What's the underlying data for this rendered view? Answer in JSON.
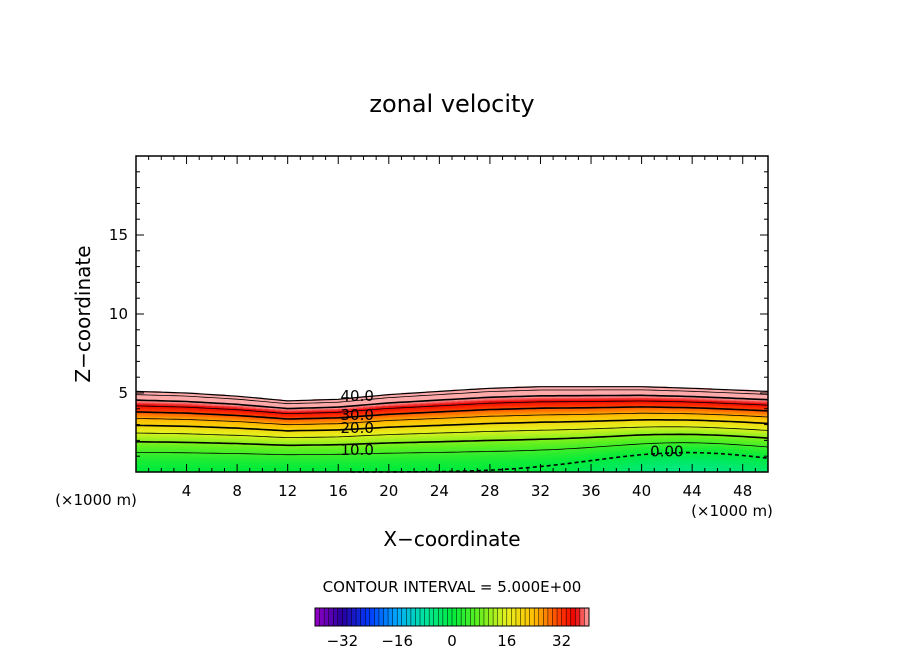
{
  "chart_data": {
    "type": "heatmap",
    "title": "zonal velocity",
    "xlabel": "X−coordinate",
    "ylabel": "Z−coordinate",
    "x_unit_left": "(×1000 m)",
    "x_unit_right": "(×1000 m)",
    "xlim": [
      0,
      50
    ],
    "ylim": [
      0,
      20
    ],
    "x_ticks": [
      4,
      8,
      12,
      16,
      20,
      24,
      28,
      32,
      36,
      40,
      44,
      48
    ],
    "x_tick_labels": [
      "4",
      "8",
      "12",
      "16",
      "20",
      "24",
      "28",
      "32",
      "36",
      "40",
      "44",
      "48"
    ],
    "y_ticks": [
      5,
      10,
      15
    ],
    "y_tick_labels": [
      "5",
      "10",
      "15"
    ],
    "contour_interval_text": "CONTOUR INTERVAL = 5.000E+00",
    "contour_interval": 5,
    "contour_labels": [
      {
        "text": "40.0",
        "x": 17.5,
        "y": 4.8
      },
      {
        "text": "30.0",
        "x": 17.5,
        "y": 3.6
      },
      {
        "text": "20.0",
        "x": 17.5,
        "y": 2.8
      },
      {
        "text": "10.0",
        "x": 17.5,
        "y": 1.4
      },
      {
        "text": "0.00",
        "x": 42.0,
        "y": 1.3
      }
    ],
    "colorbar": {
      "min": -40,
      "max": 40,
      "ticks": [
        -32,
        -16,
        0,
        16,
        32
      ],
      "tick_labels": [
        "−32",
        "−16",
        "0",
        "16",
        "32"
      ]
    },
    "top_height_profile": [
      [
        0,
        5.1
      ],
      [
        4,
        5.0
      ],
      [
        8,
        4.8
      ],
      [
        12,
        4.5
      ],
      [
        16,
        4.6
      ],
      [
        20,
        4.9
      ],
      [
        24,
        5.1
      ],
      [
        28,
        5.3
      ],
      [
        32,
        5.4
      ],
      [
        36,
        5.4
      ],
      [
        40,
        5.4
      ],
      [
        44,
        5.3
      ],
      [
        50,
        5.1
      ]
    ]
  }
}
